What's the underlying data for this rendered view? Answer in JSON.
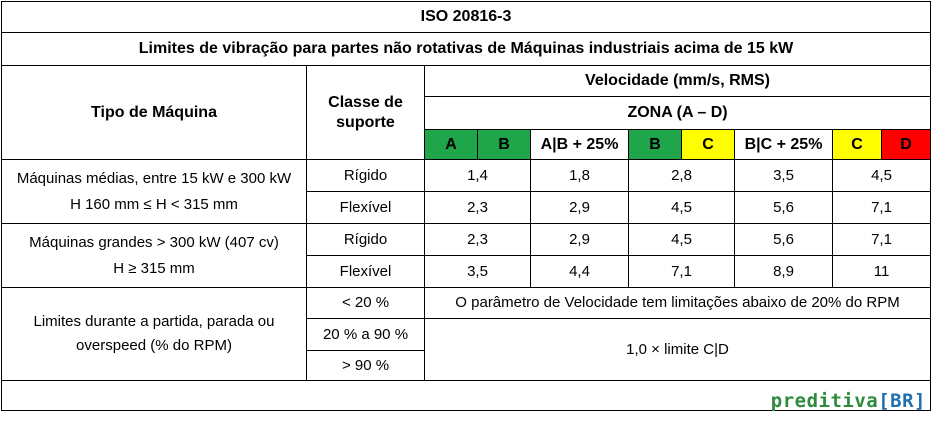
{
  "header": {
    "standard": "ISO 20816-3",
    "subtitle": "Limites de vibração para partes não rotativas de Máquinas industriais acima de 15 kW"
  },
  "columns": {
    "machine_type": "Tipo de Máquina",
    "support_class": "Classe de suporte",
    "velocity": "Velocidade (mm/s, RMS)",
    "zone": "ZONA (A – D)",
    "zone_labels": [
      "A",
      "B",
      "A|B + 25%",
      "B",
      "C",
      "B|C + 25%",
      "C",
      "D"
    ]
  },
  "rows": [
    {
      "machine": "Máquinas médias, entre 15 kW e 300 kW",
      "machine_sub": "H 160 mm ≤ H < 315 mm",
      "supports": [
        {
          "support": "Rígido",
          "values": [
            "1,4",
            "1,8",
            "2,8",
            "3,5",
            "4,5"
          ]
        },
        {
          "support": "Flexível",
          "values": [
            "2,3",
            "2,9",
            "4,5",
            "5,6",
            "7,1"
          ]
        }
      ]
    },
    {
      "machine": "Máquinas grandes > 300 kW (407 cv)",
      "machine_sub": "H ≥ 315 mm",
      "supports": [
        {
          "support": "Rígido",
          "values": [
            "2,3",
            "2,9",
            "4,5",
            "5,6",
            "7,1"
          ]
        },
        {
          "support": "Flexível",
          "values": [
            "3,5",
            "4,4",
            "7,1",
            "8,9",
            "11"
          ]
        }
      ]
    }
  ],
  "limits": {
    "label_line1": "Limites durante a partida, parada ou",
    "label_line2": "overspeed (% do RPM)",
    "ranges": [
      "< 20 %",
      "20 % a 90 %",
      "> 90 %"
    ],
    "note_low": "O parâmetro de Velocidade tem limitações abaixo de 20% do RPM",
    "note_high": "1,0 × limite C|D"
  },
  "brand": {
    "name": "preditiva",
    "suffix": "[BR]"
  },
  "colors": {
    "green": "#1fa64a",
    "yellow": "#ffff00",
    "red": "#ff0000",
    "brand_green": "#2e8b3e",
    "brand_blue": "#1f6fb2"
  }
}
